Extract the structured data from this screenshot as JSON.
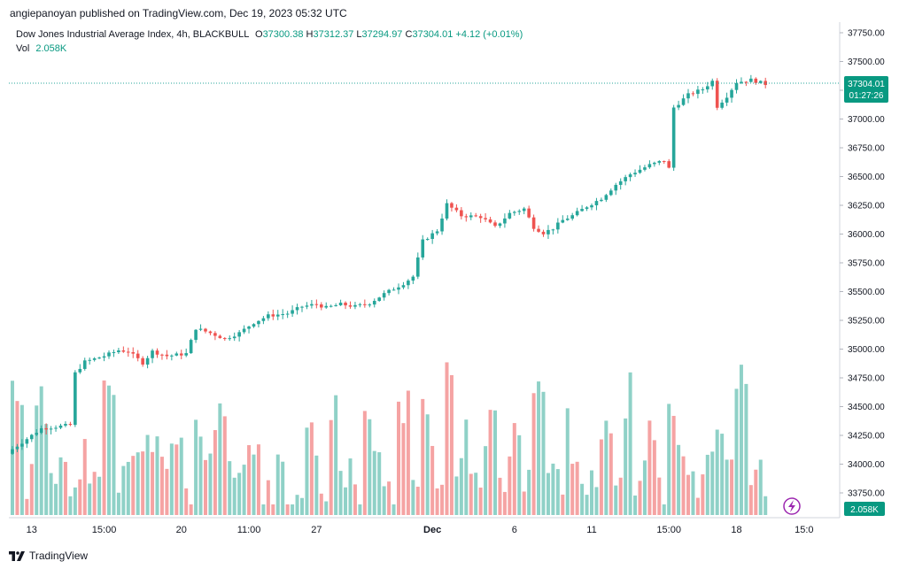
{
  "header": {
    "publisher": "angiepanoyan published on TradingView.com, Dec 19, 2023 05:32 UTC"
  },
  "legend": {
    "symbol": "Dow Jones Industrial Average Index, 4h, BLACKBULL",
    "o_label": "O",
    "o_value": "37300.38",
    "h_label": "H",
    "h_value": "37312.37",
    "l_label": "L",
    "l_value": "37294.97",
    "c_label": "C",
    "c_value": "37304.01",
    "change": "+4.12 (+0.01%)",
    "vol_label": "Vol",
    "vol_value": "2.058K"
  },
  "price_badge": {
    "price": "37304.01",
    "countdown": "01:27:26"
  },
  "volume_badge": "2.058K",
  "footer": {
    "brand": "TradingView"
  },
  "colors": {
    "up": "#26a69a",
    "down": "#ef5350",
    "up_vol": "#8fd1c7",
    "down_vol": "#f5a3a3",
    "accent": "#089981"
  },
  "chart_data": {
    "type": "candlestick",
    "y_ticks": [
      "37750.00",
      "37500.00",
      "37250.00",
      "37000.00",
      "36750.00",
      "36500.00",
      "36250.00",
      "36000.00",
      "35750.00",
      "35500.00",
      "35250.00",
      "35000.00",
      "34750.00",
      "34500.00",
      "34250.00",
      "34000.00",
      "33750.00"
    ],
    "ylim": [
      33600,
      37850
    ],
    "x_ticks": [
      {
        "label": "13",
        "i": 4
      },
      {
        "label": "15:00",
        "i": 19
      },
      {
        "label": "20",
        "i": 35
      },
      {
        "label": "11:00",
        "i": 49
      },
      {
        "label": "27",
        "i": 63
      },
      {
        "label": "Dec",
        "i": 87,
        "bold": true
      },
      {
        "label": "6",
        "i": 104
      },
      {
        "label": "11",
        "i": 120
      },
      {
        "label": "15:00",
        "i": 136
      },
      {
        "label": "18",
        "i": 150
      },
      {
        "label": "15:0",
        "i": 164
      }
    ],
    "ohlc_trend": [
      [
        0,
        34130
      ],
      [
        3,
        34220
      ],
      [
        6,
        34310
      ],
      [
        10,
        34330
      ],
      [
        12,
        34340
      ],
      [
        13,
        34790
      ],
      [
        15,
        34890
      ],
      [
        19,
        34940
      ],
      [
        22,
        34990
      ],
      [
        24,
        34980
      ],
      [
        27,
        34880
      ],
      [
        29,
        34980
      ],
      [
        32,
        34940
      ],
      [
        36,
        34960
      ],
      [
        38,
        35180
      ],
      [
        41,
        35140
      ],
      [
        44,
        35090
      ],
      [
        47,
        35140
      ],
      [
        50,
        35230
      ],
      [
        53,
        35290
      ],
      [
        57,
        35310
      ],
      [
        60,
        35370
      ],
      [
        63,
        35390
      ],
      [
        65,
        35360
      ],
      [
        68,
        35390
      ],
      [
        71,
        35370
      ],
      [
        74,
        35400
      ],
      [
        77,
        35480
      ],
      [
        81,
        35570
      ],
      [
        83,
        35630
      ],
      [
        85,
        35940
      ],
      [
        88,
        36030
      ],
      [
        90,
        36260
      ],
      [
        93,
        36160
      ],
      [
        97,
        36150
      ],
      [
        100,
        36060
      ],
      [
        103,
        36180
      ],
      [
        106,
        36220
      ],
      [
        108,
        36060
      ],
      [
        110,
        36010
      ],
      [
        112,
        36050
      ],
      [
        114,
        36120
      ],
      [
        116,
        36160
      ],
      [
        119,
        36240
      ],
      [
        122,
        36310
      ],
      [
        125,
        36430
      ],
      [
        128,
        36520
      ],
      [
        130,
        36560
      ],
      [
        132,
        36600
      ],
      [
        135,
        36640
      ],
      [
        136,
        36570
      ],
      [
        137,
        37100
      ],
      [
        140,
        37210
      ],
      [
        143,
        37260
      ],
      [
        145,
        37330
      ],
      [
        146,
        37110
      ],
      [
        148,
        37200
      ],
      [
        150,
        37320
      ],
      [
        153,
        37340
      ],
      [
        156,
        37304
      ]
    ],
    "volume_profile": [
      34700,
      33900,
      34500,
      34000,
      34300,
      33800,
      34100,
      33800,
      34600,
      33900,
      34000,
      34300,
      34200,
      33900,
      34300,
      33800,
      34200,
      34100,
      34400,
      33900,
      34000,
      34200,
      33800,
      33900,
      33700,
      34000,
      34300,
      33900,
      34600,
      33900,
      33800,
      34500,
      34000,
      33800,
      34600,
      33900,
      34400,
      34000,
      34700,
      33900,
      34200,
      34000,
      34400,
      33900,
      34500,
      34000,
      34700,
      33900,
      34000,
      34300,
      33900,
      33800,
      34200,
      33900,
      34600,
      34000,
      34300,
      33800,
      34400,
      33900,
      34000,
      34200,
      34500,
      34100,
      34900,
      33800,
      34000
    ]
  }
}
